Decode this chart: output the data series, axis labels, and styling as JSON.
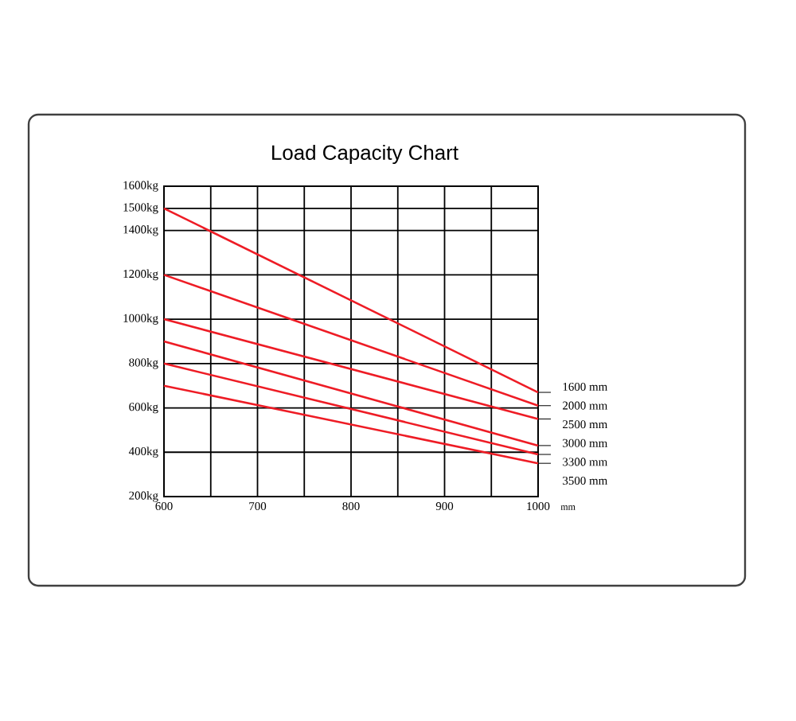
{
  "chart_data": {
    "type": "line",
    "title": "Load Capacity Chart",
    "xlabel": "mm",
    "x": [
      600,
      1000
    ],
    "series": [
      {
        "name": "1600 mm",
        "color": "#ee1c25",
        "values": [
          1500,
          670
        ]
      },
      {
        "name": "2000 mm",
        "color": "#ee1c25",
        "values": [
          1200,
          610
        ]
      },
      {
        "name": "2500 mm",
        "color": "#ee1c25",
        "values": [
          1000,
          550
        ]
      },
      {
        "name": "3000 mm",
        "color": "#ee1c25",
        "values": [
          900,
          430
        ]
      },
      {
        "name": "3300 mm",
        "color": "#ee1c25",
        "values": [
          800,
          390
        ]
      },
      {
        "name": "3500 mm",
        "color": "#ee1c25",
        "values": [
          700,
          350
        ]
      }
    ],
    "xlim": [
      600,
      1000
    ],
    "ylim": [
      200,
      1600
    ],
    "xticks": [
      600,
      {
        "value": 650,
        "label": null
      },
      700,
      {
        "value": 750,
        "label": null
      },
      800,
      {
        "value": 850,
        "label": null
      },
      900,
      {
        "value": 950,
        "label": null
      },
      1000
    ],
    "yticks": [
      {
        "value": 200,
        "label": "200kg"
      },
      {
        "value": 400,
        "label": "400kg"
      },
      {
        "value": 600,
        "label": "600kg"
      },
      {
        "value": 800,
        "label": "800kg"
      },
      {
        "value": 1000,
        "label": "1000kg"
      },
      {
        "value": 1200,
        "label": "1200kg"
      },
      {
        "value": 1400,
        "label": "1400kg"
      },
      {
        "value": 1500,
        "label": "1500kg"
      },
      {
        "value": 1600,
        "label": "1600kg"
      }
    ],
    "grid": true,
    "marker": "none",
    "line_style": "solid"
  }
}
